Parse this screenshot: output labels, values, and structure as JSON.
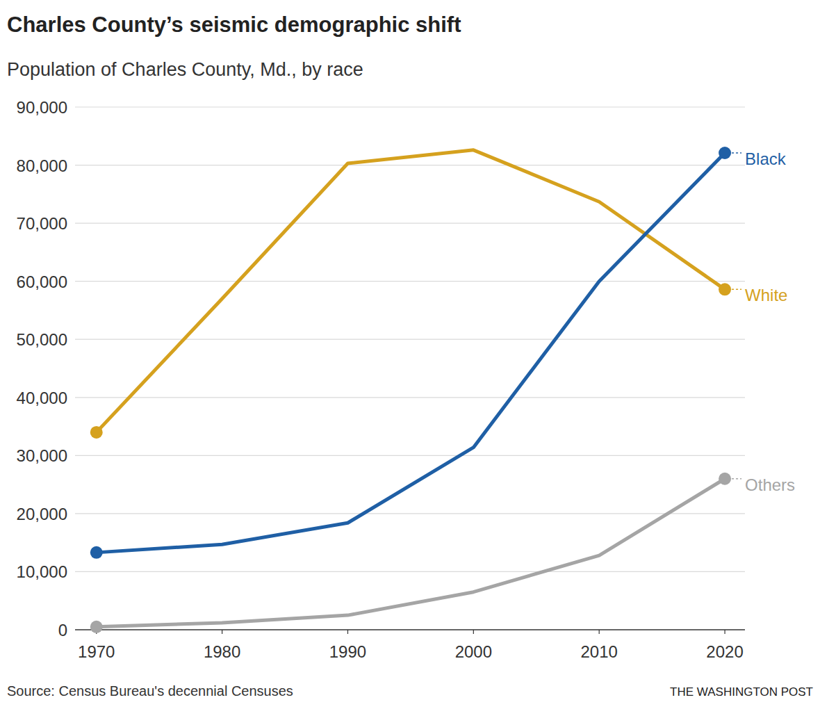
{
  "chart_data": {
    "type": "line",
    "title": "Charles County’s seismic demographic shift",
    "subtitle": "Population of Charles County, Md., by race",
    "source": "Source: Census Bureau's decennial Censuses",
    "credit": "THE WASHINGTON POST",
    "x": [
      1970,
      1980,
      1990,
      2000,
      2010,
      2020
    ],
    "xlim": [
      1968.3,
      2021.6
    ],
    "xticks": [
      1970,
      1980,
      1990,
      2000,
      2010,
      2020
    ],
    "ylim": [
      0,
      90000
    ],
    "yticks": [
      0,
      {
        "value": 10000,
        "label": "10,000"
      },
      {
        "value": 20000,
        "label": "20,000"
      },
      {
        "value": 30000,
        "label": "30,000"
      },
      {
        "value": 40000,
        "label": "40,000"
      },
      {
        "value": 50000,
        "label": "50,000"
      },
      {
        "value": 60000,
        "label": "60,000"
      },
      {
        "value": 70000,
        "label": "70,000"
      },
      {
        "value": 80000,
        "label": "80,000"
      },
      {
        "value": 90000,
        "label": "90,000"
      }
    ],
    "grid": true,
    "marker": "endpoints",
    "series": [
      {
        "name": "White",
        "color": "#d5a11e",
        "values": [
          34000,
          57000,
          80300,
          82600,
          73700,
          58600
        ]
      },
      {
        "name": "Black",
        "color": "#1f5fa5",
        "values": [
          13300,
          14700,
          18400,
          31400,
          60000,
          82100
        ]
      },
      {
        "name": "Others",
        "color": "#a5a5a5",
        "values": [
          500,
          1200,
          2500,
          6500,
          12800,
          26000
        ]
      }
    ]
  }
}
